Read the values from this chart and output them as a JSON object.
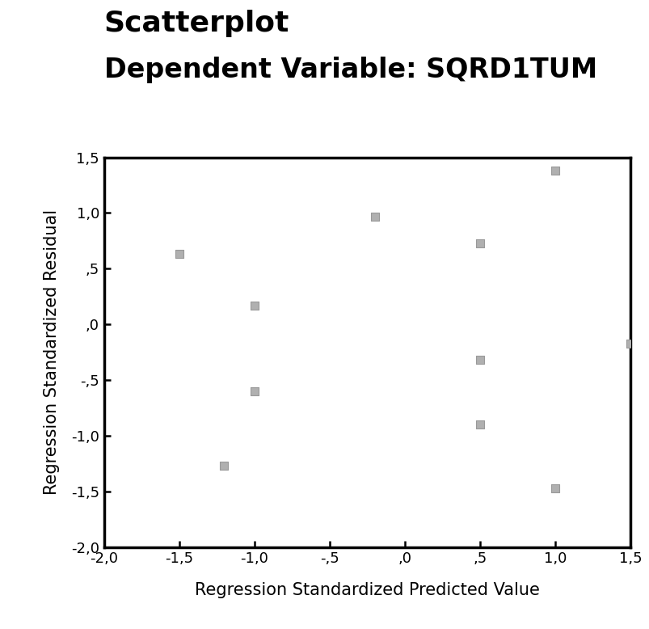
{
  "title": "Scatterplot",
  "subtitle": "Dependent Variable: SQRD1TUM",
  "xlabel": "Regression Standardized Predicted Value",
  "ylabel": "Regression Standardized Residual",
  "xlim": [
    -2.0,
    1.5
  ],
  "ylim": [
    -2.0,
    1.5
  ],
  "xticks": [
    -2.0,
    -1.5,
    -1.0,
    -0.5,
    0.0,
    0.5,
    1.0,
    1.5
  ],
  "yticks": [
    -2.0,
    -1.5,
    -1.0,
    -0.5,
    0.0,
    0.5,
    1.0,
    1.5
  ],
  "xtick_labels": [
    "-2,0",
    "-1,5",
    "-1,0",
    "-,5",
    ",0",
    ",5",
    "1,0",
    "1,5"
  ],
  "ytick_labels": [
    "-2,0",
    "-1,5",
    "-1,0",
    "-,5",
    ",0",
    ",5",
    "1,0",
    "1,5"
  ],
  "x_data": [
    -1.5,
    -1.2,
    -1.0,
    -1.0,
    -0.2,
    0.5,
    0.5,
    0.5,
    1.0,
    1.0,
    1.5
  ],
  "y_data": [
    0.63,
    -1.27,
    0.17,
    -0.6,
    0.97,
    0.73,
    -0.32,
    -0.9,
    1.38,
    -1.47,
    -0.17
  ],
  "marker_color": "#b0b0b0",
  "marker_edge_color": "#999999",
  "marker_size": 48,
  "background_color": "#ffffff",
  "title_fontsize": 26,
  "subtitle_fontsize": 24,
  "axis_label_fontsize": 15,
  "tick_fontsize": 13,
  "spine_linewidth": 2.5
}
